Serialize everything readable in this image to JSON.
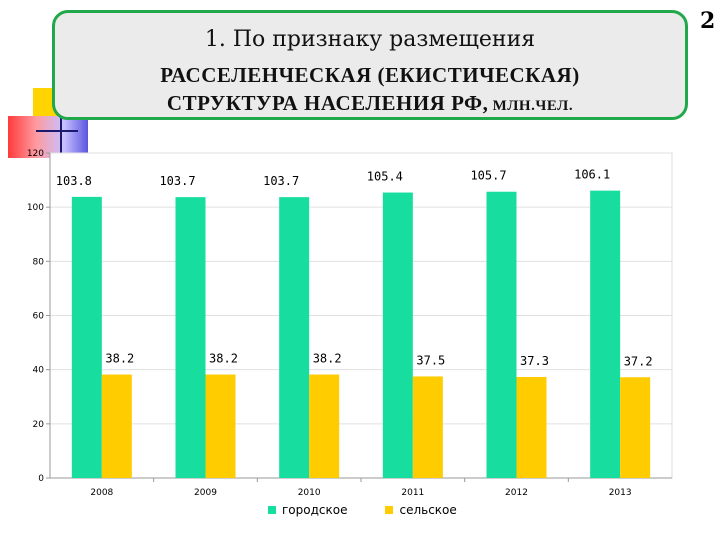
{
  "slide": {
    "page_number": "2",
    "title_line1": "1. По признаку размещения",
    "title_line2": "РАССЕЛЕНЧЕСКАЯ (ЕКИСТИЧЕСКАЯ)",
    "title_line3_main": "СТРУКТУРА НАСЕЛЕНИЯ РФ,",
    "title_line3_unit": " МЛН.ЧЕЛ."
  },
  "chart_data": {
    "type": "bar",
    "categories": [
      "2008",
      "2009",
      "2010",
      "2011",
      "2012",
      "2013"
    ],
    "series": [
      {
        "name": "городское",
        "values": [
          103.8,
          103.7,
          103.7,
          105.4,
          105.7,
          106.1
        ],
        "color": "#17dd9f",
        "labels": [
          "103.8",
          "103.7",
          "103.7",
          "105.4",
          "105.7",
          "106.1"
        ]
      },
      {
        "name": "сельское",
        "values": [
          38.2,
          38.2,
          38.2,
          37.5,
          37.3,
          37.2
        ],
        "color": "#ffcc00",
        "labels": [
          "38.2",
          "38.2",
          "38.2",
          "37.5",
          "37.3",
          "37.2"
        ]
      }
    ],
    "y_ticks": [
      "0",
      "20",
      "40",
      "60",
      "80",
      "100",
      "120"
    ],
    "ylim": [
      0,
      120
    ],
    "grid": true,
    "legend_position": "bottom"
  }
}
